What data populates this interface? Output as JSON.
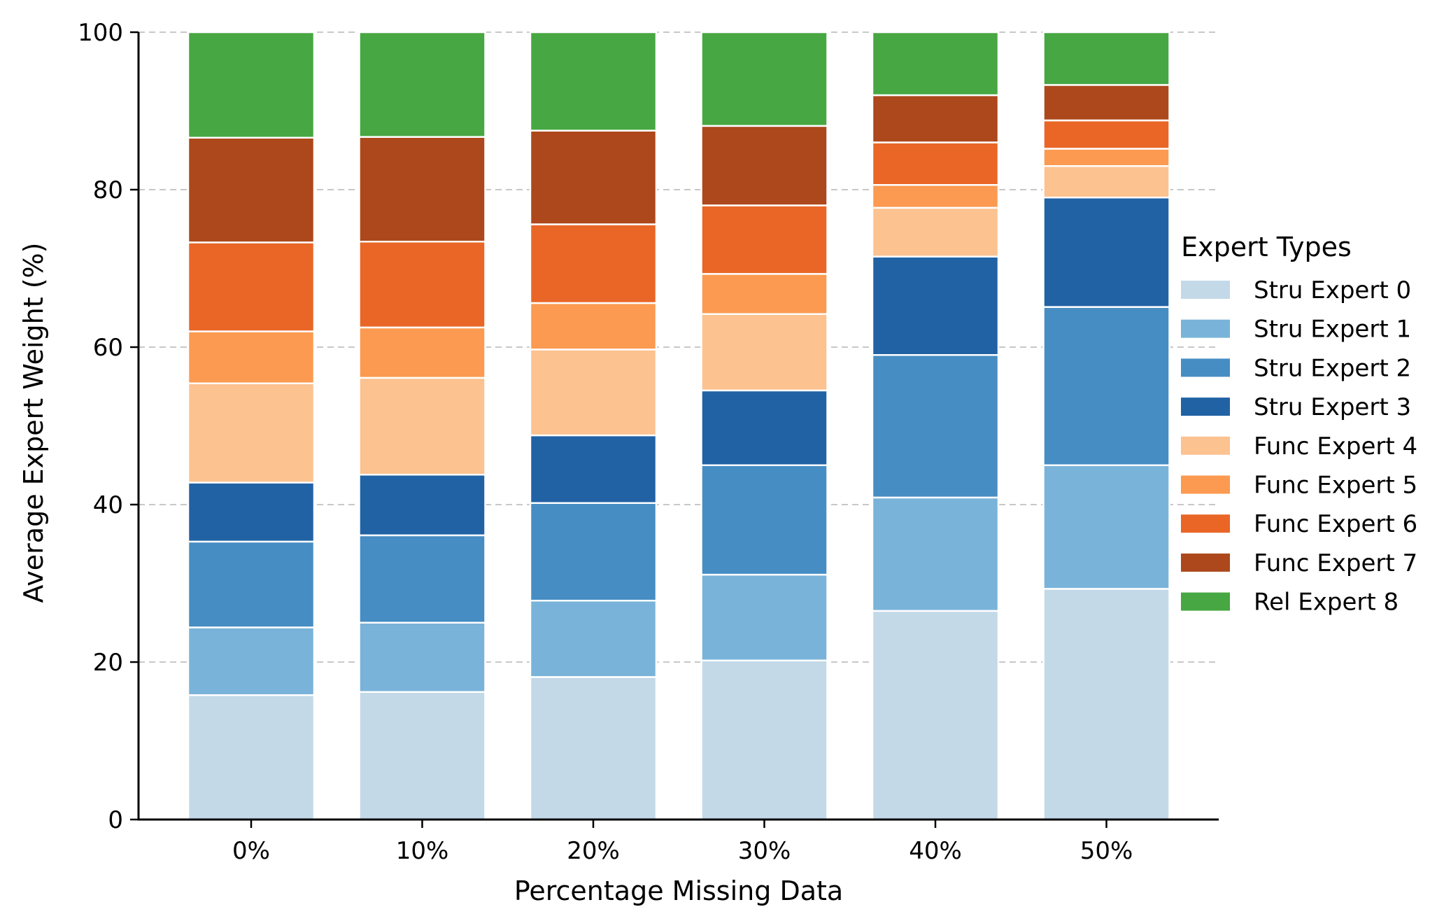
{
  "chart_data": {
    "type": "bar",
    "stacked": true,
    "title": "",
    "xlabel": "Percentage Missing Data",
    "ylabel": "Average Expert Weight (%)",
    "ylim": [
      0,
      100
    ],
    "yticks": [
      0,
      20,
      40,
      60,
      80,
      100
    ],
    "grid": "horizontal dashed",
    "legend_title": "Expert Types",
    "legend_position": "center-right",
    "categories": [
      "0%",
      "10%",
      "20%",
      "30%",
      "40%",
      "50%"
    ],
    "series": [
      {
        "name": "Stru Expert 0",
        "color": "#c3d9e8",
        "values": [
          15.8,
          16.2,
          18.1,
          20.2,
          26.5,
          29.3
        ]
      },
      {
        "name": "Stru Expert 1",
        "color": "#79b3d9",
        "values": [
          8.6,
          8.8,
          9.7,
          10.9,
          14.4,
          15.7
        ]
      },
      {
        "name": "Stru Expert 2",
        "color": "#468dc3",
        "values": [
          10.9,
          11.1,
          12.4,
          13.9,
          18.1,
          20.1
        ]
      },
      {
        "name": "Stru Expert 3",
        "color": "#2162a4",
        "values": [
          7.5,
          7.7,
          8.6,
          9.5,
          12.5,
          13.9
        ]
      },
      {
        "name": "Func Expert 4",
        "color": "#fcc290",
        "values": [
          12.6,
          12.3,
          10.9,
          9.7,
          6.2,
          4.0
        ]
      },
      {
        "name": "Func Expert 5",
        "color": "#fb9a50",
        "values": [
          6.6,
          6.4,
          5.9,
          5.1,
          2.9,
          2.2
        ]
      },
      {
        "name": "Func Expert 6",
        "color": "#e96627",
        "values": [
          11.3,
          10.9,
          10.0,
          8.7,
          5.4,
          3.6
        ]
      },
      {
        "name": "Func Expert 7",
        "color": "#ac481c",
        "values": [
          13.3,
          13.3,
          11.9,
          10.1,
          6.0,
          4.5
        ]
      },
      {
        "name": "Rel Expert 8",
        "color": "#47a742",
        "values": [
          13.4,
          13.3,
          12.5,
          11.9,
          8.0,
          6.7
        ]
      }
    ]
  }
}
